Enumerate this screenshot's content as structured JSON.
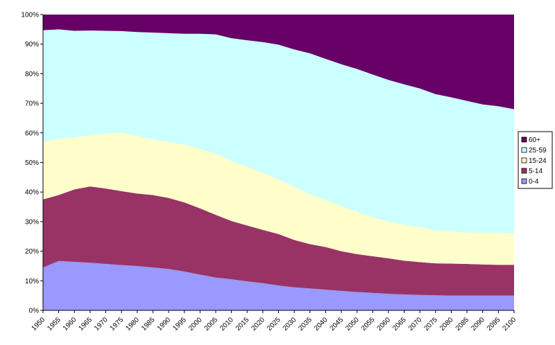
{
  "chart_data": {
    "type": "area",
    "stacked": "percent",
    "title": "",
    "xlabel": "",
    "ylabel": "",
    "ylim": [
      0,
      100
    ],
    "y_ticks": [
      "0%",
      "10%",
      "20%",
      "30%",
      "40%",
      "50%",
      "60%",
      "70%",
      "80%",
      "90%",
      "100%"
    ],
    "categories": [
      "1950",
      "1955",
      "1960",
      "1965",
      "1970",
      "1975",
      "1980",
      "1985",
      "1990",
      "1995",
      "2000",
      "2005",
      "2010",
      "2015",
      "2020",
      "2025",
      "2030",
      "2035",
      "2040",
      "2045",
      "2050",
      "2055",
      "2060",
      "2065",
      "2070",
      "2075",
      "2080",
      "2085",
      "2090",
      "2095",
      "2100"
    ],
    "grid": false,
    "legend_position": "right",
    "series": [
      {
        "name": "0-4",
        "color": "#9999FF",
        "values": [
          14.5,
          16.7,
          16.4,
          16.1,
          15.7,
          15.3,
          15.0,
          14.5,
          14.0,
          13.1,
          12.1,
          11.1,
          10.5,
          9.8,
          9.2,
          8.4,
          7.8,
          7.4,
          7.0,
          6.6,
          6.2,
          5.9,
          5.6,
          5.4,
          5.2,
          5.1,
          5.0,
          5.0,
          5.0,
          5.0,
          5.0
        ]
      },
      {
        "name": "5-14",
        "color": "#993366",
        "values": [
          23.0,
          22.3,
          24.5,
          25.8,
          25.5,
          25.0,
          24.5,
          24.5,
          24.0,
          23.4,
          22.4,
          21.2,
          19.7,
          18.9,
          18.0,
          17.4,
          16.0,
          15.0,
          14.4,
          13.4,
          12.8,
          12.4,
          12.0,
          11.4,
          11.1,
          10.8,
          10.8,
          10.7,
          10.5,
          10.4,
          10.4
        ]
      },
      {
        "name": "15-24",
        "color": "#FFFFCC",
        "values": [
          19.5,
          19.0,
          17.6,
          17.3,
          18.6,
          19.7,
          19.5,
          18.8,
          19.0,
          19.5,
          20.1,
          20.7,
          20.3,
          19.8,
          19.3,
          18.5,
          18.0,
          16.8,
          15.9,
          15.3,
          14.3,
          13.2,
          12.4,
          12.2,
          11.8,
          11.1,
          11.0,
          10.6,
          10.7,
          10.8,
          10.6
        ]
      },
      {
        "name": "25-59",
        "color": "#CCFFFF",
        "values": [
          37.7,
          37.0,
          36.0,
          35.4,
          34.7,
          34.4,
          35.1,
          36.1,
          36.7,
          37.5,
          38.9,
          40.3,
          41.5,
          42.8,
          44.2,
          45.5,
          46.4,
          47.7,
          47.7,
          47.9,
          48.3,
          48.2,
          47.9,
          47.4,
          46.9,
          46.1,
          45.2,
          44.5,
          43.4,
          42.8,
          42.0
        ]
      },
      {
        "name": "60+",
        "color": "#660066",
        "values": [
          5.3,
          5.0,
          5.5,
          5.4,
          5.5,
          5.6,
          5.9,
          6.1,
          6.3,
          6.5,
          6.5,
          6.7,
          8.0,
          8.7,
          9.3,
          10.2,
          11.8,
          13.1,
          15.0,
          16.8,
          18.4,
          20.3,
          22.1,
          23.6,
          25.0,
          26.9,
          28.0,
          29.2,
          30.4,
          31.0,
          32.0
        ]
      }
    ]
  }
}
